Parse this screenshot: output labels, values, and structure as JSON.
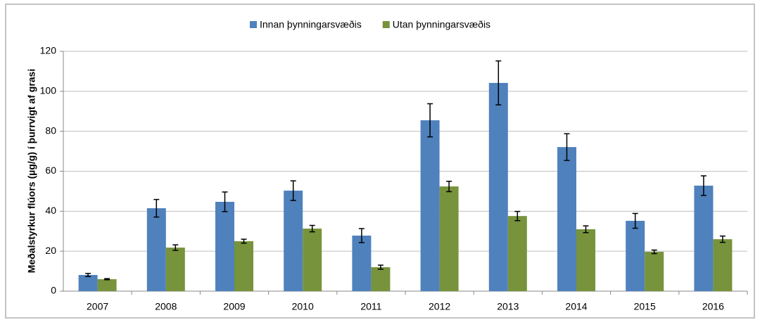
{
  "chart_data": {
    "type": "bar",
    "y_label": "Meðalstyrkur flúors (µg/g) í þurrvigt af grasi",
    "categories": [
      "2007",
      "2008",
      "2009",
      "2010",
      "2011",
      "2012",
      "2013",
      "2014",
      "2015",
      "2016"
    ],
    "series": [
      {
        "name": "Innan þynningarsvæðis",
        "color": "#4f81bd",
        "values": [
          8.1,
          41.5,
          44.7,
          50.3,
          27.8,
          85.5,
          104.2,
          72.1,
          35.2,
          52.8
        ],
        "errors": [
          0.8,
          4.4,
          4.9,
          4.9,
          3.5,
          8.3,
          11,
          6.7,
          3.7,
          4.9
        ]
      },
      {
        "name": "Utan þynningarsvæðis",
        "color": "#77933c",
        "values": [
          6.0,
          21.8,
          25.0,
          31.3,
          12.0,
          52.4,
          37.6,
          31.0,
          19.7,
          26.0
        ],
        "errors": [
          0.3,
          1.4,
          1.0,
          1.6,
          1.0,
          2.6,
          2.3,
          1.7,
          0.9,
          1.6
        ]
      }
    ],
    "ylim": [
      0,
      120
    ],
    "yticks": [
      0,
      20,
      40,
      60,
      80,
      100,
      120
    ],
    "grid": true,
    "legend": "top"
  }
}
